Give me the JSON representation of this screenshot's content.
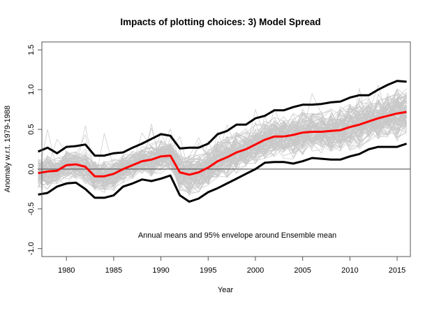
{
  "chart_data": {
    "type": "line",
    "title": "Impacts of plotting choices: 3) Model Spread",
    "xlabel": "Year",
    "ylabel": "Anomaly w.r.t. 1979-1988",
    "annotation": "Annual means and 95% envelope around Ensemble mean",
    "xlim": [
      1977.4,
      2016.4
    ],
    "ylim": [
      -1.1,
      1.6
    ],
    "x_ticks": [
      1980,
      1985,
      1990,
      1995,
      2000,
      2005,
      2010,
      2015
    ],
    "y_ticks": [
      -1.0,
      -0.5,
      0.0,
      0.5,
      1.0,
      1.5
    ],
    "y_tick_labels": [
      "-1.0",
      "-0.5",
      "0.0",
      "0.5",
      "1.0",
      "1.5"
    ],
    "reference_line": 0.0,
    "grid": false,
    "x": [
      1977,
      1978,
      1979,
      1980,
      1981,
      1982,
      1983,
      1984,
      1985,
      1986,
      1987,
      1988,
      1989,
      1990,
      1991,
      1992,
      1993,
      1994,
      1995,
      1996,
      1997,
      1998,
      1999,
      2000,
      2001,
      2002,
      2003,
      2004,
      2005,
      2006,
      2007,
      2008,
      2009,
      2010,
      2011,
      2012,
      2013,
      2014,
      2015,
      2016
    ],
    "series": [
      {
        "name": "Ensemble mean",
        "color": "#ff0000",
        "values": [
          -0.05,
          -0.03,
          -0.02,
          0.05,
          0.06,
          0.03,
          -0.09,
          -0.09,
          -0.06,
          0.0,
          0.05,
          0.1,
          0.12,
          0.16,
          0.17,
          -0.04,
          -0.07,
          -0.04,
          0.02,
          0.1,
          0.15,
          0.21,
          0.25,
          0.31,
          0.37,
          0.41,
          0.41,
          0.43,
          0.46,
          0.47,
          0.47,
          0.48,
          0.49,
          0.53,
          0.56,
          0.6,
          0.64,
          0.67,
          0.7,
          0.72
        ]
      },
      {
        "name": "95% envelope upper",
        "color": "#000000",
        "values": [
          0.22,
          0.27,
          0.2,
          0.28,
          0.29,
          0.31,
          0.17,
          0.17,
          0.2,
          0.21,
          0.27,
          0.32,
          0.38,
          0.44,
          0.42,
          0.26,
          0.27,
          0.27,
          0.32,
          0.44,
          0.48,
          0.56,
          0.56,
          0.64,
          0.67,
          0.74,
          0.74,
          0.78,
          0.81,
          0.81,
          0.82,
          0.84,
          0.85,
          0.9,
          0.93,
          0.93,
          1.0,
          1.06,
          1.11,
          1.1
        ]
      },
      {
        "name": "95% envelope lower",
        "color": "#000000",
        "values": [
          -0.32,
          -0.3,
          -0.22,
          -0.18,
          -0.17,
          -0.25,
          -0.36,
          -0.36,
          -0.33,
          -0.22,
          -0.18,
          -0.13,
          -0.15,
          -0.12,
          -0.08,
          -0.33,
          -0.41,
          -0.37,
          -0.29,
          -0.24,
          -0.18,
          -0.12,
          -0.06,
          0.0,
          0.08,
          0.09,
          0.09,
          0.07,
          0.1,
          0.14,
          0.13,
          0.12,
          0.12,
          0.16,
          0.19,
          0.25,
          0.28,
          0.28,
          0.28,
          0.32
        ]
      }
    ],
    "model_runs": {
      "color": "#c8c8c8",
      "count_estimate": 100,
      "description": "individual model annual means"
    }
  }
}
